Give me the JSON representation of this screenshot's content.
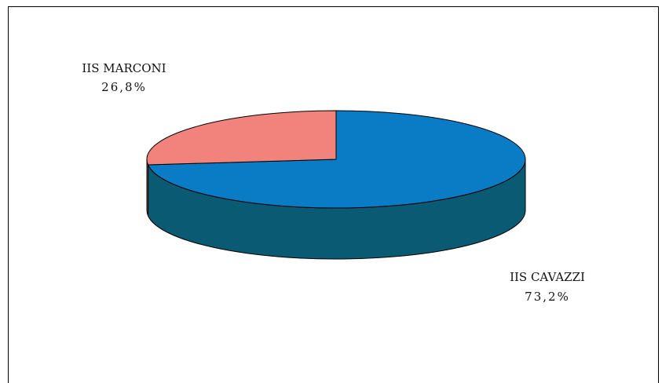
{
  "chart_data": {
    "type": "pie",
    "title": "",
    "slices": [
      {
        "label": "IIS CAVAZZI",
        "value": 73.2,
        "value_label": "73,2%",
        "color": "#0a7cc6",
        "side_color": "#0b5a73"
      },
      {
        "label": "IIS MARCONI",
        "value": 26.8,
        "value_label": "26,8%",
        "color": "#f2837c",
        "side_color": "#b45a55"
      }
    ],
    "style": "3d",
    "legend": "none"
  }
}
